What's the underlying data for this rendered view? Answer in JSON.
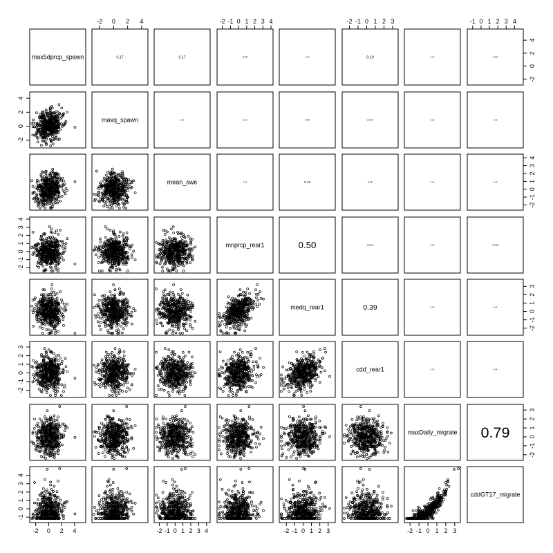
{
  "chart_data": {
    "type": "scatter",
    "subtype": "scatterplot-matrix",
    "title": "",
    "variables": [
      {
        "name": "max5dprcp_spawn",
        "range": [
          -2.6,
          5.4
        ],
        "ticks": [
          -2,
          0,
          2,
          4
        ]
      },
      {
        "name": "maxq_spawn",
        "range": [
          -2.8,
          4.6
        ],
        "ticks": [
          -2,
          0,
          2,
          4
        ]
      },
      {
        "name": "mean_swe",
        "range": [
          -2.4,
          4.2
        ],
        "ticks": [
          -2,
          -1,
          0,
          1,
          2,
          3,
          4
        ]
      },
      {
        "name": "mnprcp_rear1",
        "range": [
          -2.4,
          4.0
        ],
        "ticks": [
          -2,
          -1,
          0,
          1,
          2,
          3,
          4
        ]
      },
      {
        "name": "medq_rear1",
        "range": [
          -2.6,
          3.6
        ],
        "ticks": [
          -2,
          -1,
          0,
          1,
          2,
          3
        ]
      },
      {
        "name": "cdd_rear1",
        "range": [
          -2.6,
          3.4
        ],
        "ticks": [
          -2,
          -1,
          0,
          1,
          2,
          3
        ]
      },
      {
        "name": "maxDaily_migrate",
        "range": [
          -2.4,
          3.4
        ],
        "ticks": [
          -2,
          -1,
          0,
          1,
          2,
          3
        ]
      },
      {
        "name": "cddGT17_migrate",
        "range": [
          -1.4,
          4.8
        ],
        "ticks": [
          -1,
          0,
          1,
          2,
          3,
          4
        ]
      }
    ],
    "correlations": [
      {
        "row": 0,
        "col": 1,
        "value": "0.17"
      },
      {
        "row": 0,
        "col": 2,
        "value": "0.17"
      },
      {
        "row": 0,
        "col": 3,
        "value": "0.08"
      },
      {
        "row": 0,
        "col": 4,
        "value": "0.06"
      },
      {
        "row": 0,
        "col": 5,
        "value": "0.19"
      },
      {
        "row": 0,
        "col": 6,
        "value": "0.01"
      },
      {
        "row": 0,
        "col": 7,
        "value": "0.055"
      },
      {
        "row": 1,
        "col": 2,
        "value": "0.06"
      },
      {
        "row": 1,
        "col": 3,
        "value": "0.03"
      },
      {
        "row": 1,
        "col": 4,
        "value": "0.08"
      },
      {
        "row": 1,
        "col": 5,
        "value": "0.0097"
      },
      {
        "row": 1,
        "col": 6,
        "value": "0.02"
      },
      {
        "row": 1,
        "col": 7,
        "value": "0.06"
      },
      {
        "row": 2,
        "col": 3,
        "value": "0.05"
      },
      {
        "row": 2,
        "col": 4,
        "value": "0.15"
      },
      {
        "row": 2,
        "col": 5,
        "value": "0.09"
      },
      {
        "row": 2,
        "col": 6,
        "value": "0.04"
      },
      {
        "row": 2,
        "col": 7,
        "value": "0.06"
      },
      {
        "row": 3,
        "col": 4,
        "value": "0.50"
      },
      {
        "row": 3,
        "col": 5,
        "value": "0.0066"
      },
      {
        "row": 3,
        "col": 6,
        "value": "0.02"
      },
      {
        "row": 3,
        "col": 7,
        "value": "0.0058"
      },
      {
        "row": 4,
        "col": 5,
        "value": "0.39"
      },
      {
        "row": 4,
        "col": 6,
        "value": "0.03"
      },
      {
        "row": 4,
        "col": 7,
        "value": "0.06"
      },
      {
        "row": 5,
        "col": 6,
        "value": "0.02"
      },
      {
        "row": 5,
        "col": 7,
        "value": "0.04"
      },
      {
        "row": 6,
        "col": 7,
        "value": "0.79"
      }
    ],
    "n_points_per_panel": 450,
    "grid": false,
    "legend": "none",
    "point_shape": "open-circle",
    "point_color": "#000000"
  }
}
